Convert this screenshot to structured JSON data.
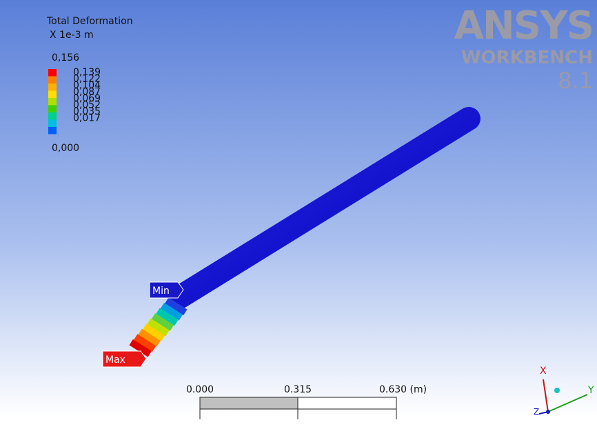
{
  "legend": {
    "title": "Total Deformation",
    "unit": "X 1e-3 m",
    "labels": [
      "0,156",
      "0,139",
      "0,122",
      "0,104",
      "0,087",
      "0,069",
      "0,052",
      "0,035",
      "0,017",
      "0,000"
    ]
  },
  "logo": {
    "brand": "ANSYS",
    "product": "WORKBENCH",
    "version": "8.1"
  },
  "probes": {
    "min": "Min",
    "max": "Max"
  },
  "scale_bar": {
    "labels": [
      "0.000",
      "0.315",
      "0.630 (m)"
    ]
  },
  "triad": {
    "x": "X",
    "y": "Y",
    "z": "Z"
  }
}
